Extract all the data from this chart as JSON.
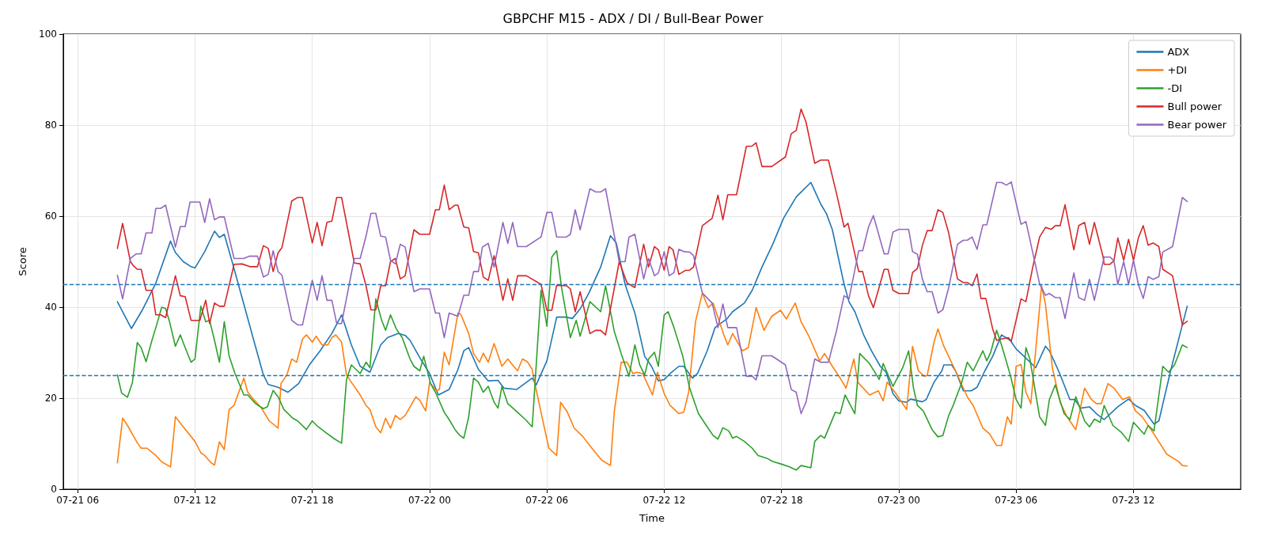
{
  "chart_data": {
    "type": "line",
    "title": "GBPCHF M15 - ADX / DI / Bull-Bear Power",
    "xlabel": "Time",
    "ylabel": "Score",
    "xlim": [
      "--07-21T05:16",
      "--07-23T17:29"
    ],
    "xticks": [
      {
        "value": "--07-21T06:00",
        "label": "07-21 06"
      },
      {
        "value": "--07-21T12:00",
        "label": "07-21 12"
      },
      {
        "value": "--07-21T18:00",
        "label": "07-21 18"
      },
      {
        "value": "--07-22T00:00",
        "label": "07-22 00"
      },
      {
        "value": "--07-22T06:00",
        "label": "07-22 06"
      },
      {
        "value": "--07-22T12:00",
        "label": "07-22 12"
      },
      {
        "value": "--07-22T18:00",
        "label": "07-22 18"
      },
      {
        "value": "--07-23T00:00",
        "label": "07-23 00"
      },
      {
        "value": "--07-23T06:00",
        "label": "07-23 06"
      },
      {
        "value": "--07-23T12:00",
        "label": "07-23 12"
      }
    ],
    "ylim": [
      0,
      100
    ],
    "yticks": [
      0,
      20,
      40,
      60,
      80,
      100
    ],
    "grid": true,
    "legend": "top right",
    "ref_lines": [
      {
        "axis": "y",
        "value": 45,
        "color": "#1f77b4",
        "line_style": "dashed"
      },
      {
        "axis": "y",
        "value": 25,
        "color": "#1f77b4",
        "line_style": "dashed"
      }
    ],
    "series": [
      {
        "name": "ADX",
        "color": "#1f77b4",
        "x": [
          "--07-21T08:02",
          "--07-21T08:45",
          "--07-21T09:18",
          "--07-21T10:00",
          "--07-21T10:45",
          "--07-21T11:00",
          "--07-21T11:24",
          "--07-21T11:48",
          "--07-21T12:00",
          "--07-21T12:30",
          "--07-21T13:00",
          "--07-21T13:15",
          "--07-21T13:30",
          "--07-21T13:54",
          "--07-21T14:21",
          "--07-21T14:57",
          "--07-21T15:30",
          "--07-21T15:45",
          "--07-21T16:15",
          "--07-21T16:45",
          "--07-21T17:18",
          "--07-21T17:51",
          "--07-21T18:24",
          "--07-21T19:00",
          "--07-21T19:30",
          "--07-21T20:00",
          "--07-21T20:27",
          "--07-21T20:57",
          "--07-21T21:30",
          "--07-21T21:51",
          "--07-21T22:24",
          "--07-21T22:45",
          "--07-21T23:00",
          "--07-21T23:30",
          "--07-22T00:00",
          "--07-22T00:27",
          "--07-22T01:00",
          "--07-22T01:27",
          "--07-22T01:45",
          "--07-22T02:00",
          "--07-22T02:30",
          "--07-22T03:00",
          "--07-22T03:30",
          "--07-22T03:48",
          "--07-22T04:27",
          "--07-22T05:15",
          "--07-22T05:27",
          "--07-22T06:00",
          "--07-22T06:30",
          "--07-22T07:00",
          "--07-22T07:18",
          "--07-22T07:42",
          "--07-22T08:09",
          "--07-22T08:45",
          "--07-22T09:15",
          "--07-22T09:33",
          "--07-22T10:00",
          "--07-22T10:30",
          "--07-22T11:00",
          "--07-22T11:21",
          "--07-22T11:42",
          "--07-22T12:00",
          "--07-22T12:18",
          "--07-22T12:45",
          "--07-22T13:00",
          "--07-22T13:27",
          "--07-22T13:42",
          "--07-22T14:12",
          "--07-22T14:36",
          "--07-22T15:12",
          "--07-22T15:30",
          "--07-22T16:06",
          "--07-22T16:30",
          "--07-22T17:00",
          "--07-22T17:33",
          "--07-22T18:06",
          "--07-22T18:45",
          "--07-22T19:30",
          "--07-22T20:00",
          "--07-22T20:18",
          "--07-22T20:36",
          "--07-22T21:12",
          "--07-22T21:27",
          "--07-22T21:45",
          "--07-22T22:12",
          "--07-22T22:36",
          "--07-22T23:03",
          "--07-22T23:21",
          "--07-22T23:42",
          "--07-23T00:00",
          "--07-23T00:24",
          "--07-23T00:36",
          "--07-23T01:12",
          "--07-23T01:24",
          "--07-23T01:48",
          "--07-23T02:12",
          "--07-23T02:18",
          "--07-23T02:42",
          "--07-23T02:54",
          "--07-23T03:18",
          "--07-23T03:42",
          "--07-23T04:00",
          "--07-23T04:24",
          "--07-23T04:48",
          "--07-23T05:15",
          "--07-23T05:42",
          "--07-23T06:00",
          "--07-23T06:24",
          "--07-23T07:00",
          "--07-23T07:30",
          "--07-23T07:42",
          "--07-23T08:12",
          "--07-23T08:45",
          "--07-23T09:00",
          "--07-23T09:18",
          "--07-23T09:45",
          "--07-23T10:06",
          "--07-23T10:30",
          "--07-23T11:12",
          "--07-23T11:45",
          "--07-23T12:06",
          "--07-23T12:33",
          "--07-23T13:03",
          "--07-23T13:18",
          "--07-23T13:54",
          "--07-23T14:30",
          "--07-23T14:45"
        ],
        "values": [
          41.2,
          35.3,
          39.3,
          45.3,
          54.5,
          52,
          50,
          48.9,
          48.6,
          52.2,
          56.7,
          55.3,
          56,
          50,
          43,
          33.6,
          25.1,
          23,
          22.4,
          21.3,
          23.2,
          27.3,
          30.4,
          34.2,
          38.3,
          31.7,
          27,
          25.7,
          31.7,
          33.3,
          34.2,
          33.8,
          32.7,
          28.9,
          25.4,
          20.7,
          21.9,
          26.3,
          30.4,
          31.1,
          26.3,
          23.8,
          23.9,
          22.2,
          21.9,
          24.4,
          22.9,
          28.2,
          37.8,
          37.8,
          37.5,
          39.6,
          43.1,
          48.8,
          55.7,
          54.1,
          45,
          38.7,
          29.2,
          27,
          23.8,
          24.1,
          25.4,
          27,
          27,
          24.4,
          25.4,
          30.4,
          35.5,
          37.4,
          39,
          40.9,
          43.7,
          48.8,
          53.8,
          59.5,
          64.2,
          67.4,
          62.7,
          60.5,
          57,
          45,
          41.2,
          39,
          33.9,
          30.4,
          27,
          25.7,
          21,
          19.4,
          19.1,
          19.8,
          19.2,
          19.7,
          23.5,
          26,
          27.3,
          27.3,
          26,
          21.6,
          21.6,
          22.4,
          26,
          29.2,
          33.9,
          32.7,
          30.8,
          29.2,
          26.7,
          31.4,
          30.4,
          25.7,
          19.7,
          19.7,
          17.8,
          18.1,
          16.6,
          15.3,
          18.1,
          19.8,
          18.4,
          17.3,
          14.3,
          15,
          26,
          36.1,
          40.2
        ]
      },
      {
        "name": "+DI",
        "color": "#ff7f0e",
        "x": [
          "--07-21T08:02",
          "--07-21T08:18",
          "--07-21T08:33",
          "--07-21T09:03",
          "--07-21T09:15",
          "--07-21T09:33",
          "--07-21T10:00",
          "--07-21T10:18",
          "--07-21T10:45",
          "--07-21T11:00",
          "--07-21T11:24",
          "--07-21T12:00",
          "--07-21T12:18",
          "--07-21T12:30",
          "--07-21T12:48",
          "--07-21T13:00",
          "--07-21T13:15",
          "--07-21T13:30",
          "--07-21T13:45",
          "--07-21T14:00",
          "--07-21T14:30",
          "--07-21T14:42",
          "--07-21T14:57",
          "--07-21T15:24",
          "--07-21T15:48",
          "--07-21T16:15",
          "--07-21T16:24",
          "--07-21T16:42",
          "--07-21T16:57",
          "--07-21T17:12",
          "--07-21T17:30",
          "--07-21T17:42",
          "--07-21T18:00",
          "--07-21T18:12",
          "--07-21T18:30",
          "--07-21T18:48",
          "--07-21T19:00",
          "--07-21T19:12",
          "--07-21T19:30",
          "--07-21T19:45",
          "--07-21T20:00",
          "--07-21T20:27",
          "--07-21T20:45",
          "--07-21T20:57",
          "--07-21T21:15",
          "--07-21T21:30",
          "--07-21T21:45",
          "--07-21T22:00",
          "--07-21T22:15",
          "--07-21T22:30",
          "--07-21T22:45",
          "--07-21T23:18",
          "--07-21T23:30",
          "--07-21T23:48",
          "--07-22T00:00",
          "--07-22T00:21",
          "--07-22T00:30",
          "--07-22T00:45",
          "--07-22T01:00",
          "--07-22T01:27",
          "--07-22T01:36",
          "--07-22T02:00",
          "--07-22T02:15",
          "--07-22T02:33",
          "--07-22T02:45",
          "--07-22T03:00",
          "--07-22T03:18",
          "--07-22T03:42",
          "--07-22T04:00",
          "--07-22T04:18",
          "--07-22T04:30",
          "--07-22T04:45",
          "--07-22T05:00",
          "--07-22T05:15",
          "--07-22T05:24",
          "--07-22T05:45",
          "--07-22T06:06",
          "--07-22T06:30",
          "--07-22T06:42",
          "--07-22T07:03",
          "--07-22T07:24",
          "--07-22T07:51",
          "--07-22T08:18",
          "--07-22T08:48",
          "--07-22T09:15",
          "--07-22T09:27",
          "--07-22T09:48",
          "--07-22T10:06",
          "--07-22T10:24",
          "--07-22T10:36",
          "--07-22T10:54",
          "--07-22T11:24",
          "--07-22T11:39",
          "--07-22T12:00",
          "--07-22T12:18",
          "--07-22T12:45",
          "--07-22T13:00",
          "--07-22T13:15",
          "--07-22T13:36",
          "--07-22T13:57",
          "--07-22T14:15",
          "--07-22T14:30",
          "--07-22T15:03",
          "--07-22T15:15",
          "--07-22T15:30",
          "--07-22T16:00",
          "--07-22T16:18",
          "--07-22T16:42",
          "--07-22T17:06",
          "--07-22T17:30",
          "--07-22T17:57",
          "--07-22T18:15",
          "--07-22T18:42",
          "--07-22T19:00",
          "--07-22T19:24",
          "--07-22T19:57",
          "--07-22T20:12",
          "--07-22T20:36",
          "--07-22T21:00",
          "--07-22T21:18",
          "--07-22T21:42",
          "--07-22T21:54",
          "--07-22T22:30",
          "--07-22T22:57",
          "--07-22T23:12",
          "--07-22T23:24",
          "--07-22T23:48",
          "--07-23T00:24",
          "--07-23T00:42",
          "--07-23T01:00",
          "--07-23T01:18",
          "--07-23T01:27",
          "--07-23T01:48",
          "--07-23T02:00",
          "--07-23T02:18",
          "--07-23T02:54",
          "--07-23T03:30",
          "--07-23T03:48",
          "--07-23T04:18",
          "--07-23T04:39",
          "--07-23T05:00",
          "--07-23T05:15",
          "--07-23T05:33",
          "--07-23T05:45",
          "--07-23T06:00",
          "--07-23T06:15",
          "--07-23T06:30",
          "--07-23T06:45",
          "--07-23T07:18",
          "--07-23T07:30",
          "--07-23T07:51",
          "--07-23T08:15",
          "--07-23T08:36",
          "--07-23T09:03",
          "--07-23T09:30",
          "--07-23T09:51",
          "--07-23T10:06",
          "--07-23T10:21",
          "--07-23T10:42",
          "--07-23T11:00",
          "--07-23T11:27",
          "--07-23T11:48",
          "--07-23T12:06",
          "--07-23T12:27",
          "--07-23T13:03",
          "--07-23T13:42",
          "--07-23T14:18",
          "--07-23T14:30",
          "--07-23T14:45"
        ],
        "values": [
          5.8,
          15.6,
          14,
          10.2,
          9,
          9,
          7.4,
          6,
          4.9,
          15.9,
          13.7,
          10.5,
          8,
          7.4,
          5.9,
          5.3,
          10.4,
          8.7,
          17.5,
          18.4,
          24.4,
          21.3,
          20,
          17.8,
          15,
          13.4,
          23.2,
          25.1,
          28.6,
          27.9,
          33,
          33.9,
          32.3,
          33.6,
          31.7,
          31.7,
          33.3,
          33.9,
          32.3,
          25.1,
          23.5,
          20.7,
          18.4,
          17.5,
          13.7,
          12.4,
          15.6,
          13.4,
          16.2,
          15.3,
          16.2,
          20.3,
          19.5,
          17.2,
          23.5,
          21.6,
          21.9,
          30.1,
          27.3,
          38.7,
          38.4,
          34.2,
          29.8,
          27.9,
          29.9,
          27.9,
          32,
          27,
          28.6,
          27,
          26,
          28.6,
          28,
          26.3,
          22.9,
          15.9,
          9,
          7.4,
          19.1,
          16.9,
          13.4,
          11.5,
          9,
          6.4,
          5.2,
          17.2,
          27.9,
          27.9,
          25.4,
          25.7,
          25.4,
          20.7,
          25.7,
          21,
          18.4,
          16.6,
          16.9,
          21.3,
          36.8,
          43.1,
          39.9,
          40.9,
          33.9,
          31.7,
          34.2,
          30.4,
          31.1,
          39.9,
          34.9,
          38,
          39.3,
          37.4,
          40.9,
          36.8,
          33.6,
          28.2,
          29.8,
          27,
          24.4,
          22.2,
          28.6,
          23.5,
          20.7,
          21.6,
          19.4,
          23.5,
          21.3,
          17.5,
          31.4,
          26,
          24.8,
          25,
          32.3,
          35.2,
          31.4,
          26,
          20.3,
          18.4,
          13.4,
          12.1,
          9.6,
          9.6,
          15.9,
          14.3,
          27,
          27.4,
          21.3,
          18.8,
          44.7,
          40.6,
          26.7,
          19.1,
          15.9,
          13.1,
          22.2,
          19.7,
          18.8,
          18.8,
          23.2,
          22.2,
          19.7,
          20.3,
          17.2,
          15.9,
          12.1,
          7.7,
          6.1,
          5.2,
          5.1
        ]
      },
      {
        "name": "-DI",
        "color": "#2ca02c",
        "x": [
          "--07-21T08:02",
          "--07-21T08:15",
          "--07-21T08:33",
          "--07-21T08:48",
          "--07-21T09:03",
          "--07-21T09:15",
          "--07-21T09:30",
          "--07-21T09:48",
          "--07-21T10:00",
          "--07-21T10:18",
          "--07-21T10:30",
          "--07-21T10:42",
          "--07-21T11:00",
          "--07-21T11:15",
          "--07-21T11:30",
          "--07-21T11:48",
          "--07-21T12:00",
          "--07-21T12:18",
          "--07-21T12:33",
          "--07-21T12:45",
          "--07-21T13:00",
          "--07-21T13:15",
          "--07-21T13:30",
          "--07-21T13:45",
          "--07-21T14:03",
          "--07-21T14:30",
          "--07-21T14:42",
          "--07-21T15:06",
          "--07-21T15:30",
          "--07-21T15:42",
          "--07-21T16:00",
          "--07-21T16:15",
          "--07-21T16:33",
          "--07-21T17:00",
          "--07-21T17:15",
          "--07-21T17:42",
          "--07-21T18:00",
          "--07-21T18:18",
          "--07-21T18:42",
          "--07-21T19:09",
          "--07-21T19:30",
          "--07-21T19:45",
          "--07-21T20:00",
          "--07-21T20:27",
          "--07-21T20:45",
          "--07-21T20:57",
          "--07-21T21:15",
          "--07-21T21:33",
          "--07-21T21:45",
          "--07-21T22:00",
          "--07-21T22:18",
          "--07-21T22:36",
          "--07-21T23:00",
          "--07-21T23:12",
          "--07-21T23:30",
          "--07-21T23:42",
          "--07-22T00:03",
          "--07-22T00:18",
          "--07-22T00:45",
          "--07-22T01:00",
          "--07-22T01:18",
          "--07-22T01:33",
          "--07-22T01:45",
          "--07-22T02:00",
          "--07-22T02:15",
          "--07-22T02:30",
          "--07-22T02:45",
          "--07-22T03:00",
          "--07-22T03:18",
          "--07-22T03:30",
          "--07-22T03:42",
          "--07-22T04:00",
          "--07-22T04:30",
          "--07-22T04:54",
          "--07-22T05:15",
          "--07-22T05:42",
          "--07-22T06:00",
          "--07-22T06:15",
          "--07-22T06:30",
          "--07-22T06:45",
          "--07-22T07:12",
          "--07-22T07:30",
          "--07-22T07:42",
          "--07-22T08:12",
          "--07-22T08:45",
          "--07-22T09:00",
          "--07-22T09:27",
          "--07-22T09:48",
          "--07-22T10:12",
          "--07-22T10:30",
          "--07-22T10:45",
          "--07-22T11:00",
          "--07-22T11:12",
          "--07-22T11:30",
          "--07-22T11:42",
          "--07-22T12:00",
          "--07-22T12:12",
          "--07-22T12:30",
          "--07-22T12:57",
          "--07-22T13:18",
          "--07-22T13:45",
          "--07-22T14:12",
          "--07-22T14:30",
          "--07-22T14:45",
          "--07-22T15:00",
          "--07-22T15:18",
          "--07-22T15:30",
          "--07-22T15:42",
          "--07-22T16:06",
          "--07-22T16:30",
          "--07-22T16:48",
          "--07-22T17:15",
          "--07-22T17:33",
          "--07-22T18:00",
          "--07-22T18:24",
          "--07-22T18:45",
          "--07-22T19:00",
          "--07-22T19:30",
          "--07-22T19:42",
          "--07-22T20:00",
          "--07-22T20:12",
          "--07-22T20:45",
          "--07-22T21:00",
          "--07-22T21:15",
          "--07-22T21:45",
          "--07-22T22:00",
          "--07-22T22:30",
          "--07-22T23:00",
          "--07-22T23:12",
          "--07-22T23:42",
          "--07-23T00:12",
          "--07-23T00:30",
          "--07-23T00:45",
          "--07-23T00:57",
          "--07-23T01:15",
          "--07-23T01:42",
          "--07-23T02:00",
          "--07-23T02:15",
          "--07-23T02:33",
          "--07-23T02:45",
          "--07-23T03:12",
          "--07-23T03:30",
          "--07-23T03:48",
          "--07-23T04:18",
          "--07-23T04:30",
          "--07-23T04:42",
          "--07-23T05:00",
          "--07-23T05:15",
          "--07-23T05:42",
          "--07-23T06:00",
          "--07-23T06:15",
          "--07-23T06:30",
          "--07-23T06:42",
          "--07-23T07:12",
          "--07-23T07:30",
          "--07-23T07:42",
          "--07-23T08:00",
          "--07-23T08:27",
          "--07-23T08:45",
          "--07-23T09:03",
          "--07-23T09:30",
          "--07-23T09:45",
          "--07-23T10:00",
          "--07-23T10:18",
          "--07-23T10:30",
          "--07-23T10:57",
          "--07-23T11:24",
          "--07-23T11:45",
          "--07-23T12:00",
          "--07-23T12:33",
          "--07-23T12:45",
          "--07-23T13:03",
          "--07-23T13:30",
          "--07-23T13:48",
          "--07-23T14:06",
          "--07-23T14:30",
          "--07-23T14:45"
        ],
        "values": [
          25.1,
          21.1,
          20.2,
          23.4,
          32.2,
          31.1,
          28,
          32.7,
          35.5,
          40,
          39.7,
          36.8,
          31.4,
          33.9,
          31.1,
          27.9,
          28.6,
          40.2,
          36.8,
          37.1,
          32.7,
          27.9,
          36.8,
          29.2,
          25.4,
          20.7,
          20.7,
          18.8,
          17.7,
          18.1,
          21.7,
          20.3,
          17.5,
          15.6,
          15,
          13.1,
          15,
          13.7,
          12.4,
          11,
          10.1,
          24.1,
          27.3,
          25.4,
          27.9,
          26.7,
          41.8,
          37.1,
          34.9,
          38.3,
          35.2,
          33.3,
          28.6,
          27,
          26,
          29.2,
          23.2,
          21.3,
          16.9,
          15.3,
          13.1,
          11.8,
          11.2,
          15.9,
          24.4,
          23.5,
          21.3,
          22.6,
          19.1,
          17.8,
          22.6,
          18.8,
          16.9,
          15.3,
          13.7,
          43.7,
          35.8,
          51,
          52.4,
          44.3,
          33.3,
          37.1,
          33.6,
          41.2,
          39,
          44.7,
          34.6,
          29.8,
          24.8,
          31.7,
          27.3,
          25.1,
          28.6,
          30.1,
          27,
          38.3,
          39,
          35.5,
          29.2,
          22.2,
          16.6,
          13.7,
          11.8,
          11,
          13.5,
          12.8,
          11.2,
          11.6,
          10.5,
          9,
          7.4,
          6.8,
          6.1,
          5.5,
          4.9,
          4.2,
          5.2,
          4.7,
          10.5,
          11.8,
          11.2,
          16.9,
          16.6,
          20.7,
          16.6,
          29.8,
          27.6,
          24.1,
          27.6,
          22.6,
          26.7,
          30.4,
          22.2,
          18.4,
          17.2,
          13.1,
          11.5,
          11.8,
          16.2,
          18.1,
          23.2,
          27.9,
          26,
          30.4,
          28.2,
          30.1,
          34.9,
          31.7,
          25.1,
          19.7,
          17.8,
          31.1,
          28.6,
          15.9,
          14,
          19.7,
          22.9,
          16.6,
          15.3,
          20.3,
          15,
          13.7,
          15.4,
          14.7,
          18.4,
          14,
          12.4,
          10.5,
          14.7,
          12.1,
          14,
          12.8,
          27,
          25.7,
          27.3,
          31.7,
          31.1
        ]
      },
      {
        "name": "Bull power",
        "color": "#d62728",
        "x": [
          "--07-21T08:02",
          "--07-21T08:18",
          "--07-21T08:42",
          "--07-21T08:51",
          "--07-21T09:03",
          "--07-21T09:15",
          "--07-21T09:30",
          "--07-21T09:48",
          "--07-21T10:00",
          "--07-21T10:15",
          "--07-21T10:30",
          "--07-21T11:00",
          "--07-21T11:15",
          "--07-21T11:30",
          "--07-21T11:48",
          "--07-21T12:15",
          "--07-21T12:33",
          "--07-21T12:45",
          "--07-21T13:00",
          "--07-21T13:15",
          "--07-21T13:30",
          "--07-21T14:00",
          "--07-21T14:24",
          "--07-21T14:48",
          "--07-21T15:12",
          "--07-21T15:30",
          "--07-21T15:45",
          "--07-21T16:00",
          "--07-21T16:15",
          "--07-21T16:27",
          "--07-21T16:57",
          "--07-21T17:15",
          "--07-21T17:30",
          "--07-21T18:00",
          "--07-21T18:15",
          "--07-21T18:30",
          "--07-21T18:45",
          "--07-21T19:00",
          "--07-21T19:15",
          "--07-21T19:30",
          "--07-21T20:09",
          "--07-21T20:27",
          "--07-21T20:45",
          "--07-21T21:00",
          "--07-21T21:15",
          "--07-21T21:30",
          "--07-21T21:45",
          "--07-21T22:00",
          "--07-21T22:15",
          "--07-21T22:30",
          "--07-21T22:45",
          "--07-21T23:12",
          "--07-21T23:30",
          "--07-22T00:00",
          "--07-22T00:18",
          "--07-22T00:30",
          "--07-22T00:45",
          "--07-22T01:00",
          "--07-22T01:18",
          "--07-22T01:27",
          "--07-22T01:45",
          "--07-22T02:00",
          "--07-22T02:15",
          "--07-22T02:30",
          "--07-22T02:45",
          "--07-22T03:00",
          "--07-22T03:18",
          "--07-22T03:45",
          "--07-22T04:00",
          "--07-22T04:15",
          "--07-22T04:30",
          "--07-22T04:57",
          "--07-22T05:42",
          "--07-22T06:00",
          "--07-22T06:15",
          "--07-22T06:30",
          "--07-22T07:00",
          "--07-22T07:12",
          "--07-22T07:27",
          "--07-22T07:42",
          "--07-22T08:12",
          "--07-22T08:30",
          "--07-22T08:45",
          "--07-22T09:00",
          "--07-22T09:42",
          "--07-22T10:06",
          "--07-22T10:30",
          "--07-22T10:57",
          "--07-22T11:12",
          "--07-22T11:30",
          "--07-22T11:42",
          "--07-22T12:00",
          "--07-22T12:15",
          "--07-22T12:27",
          "--07-22T12:45",
          "--07-22T13:06",
          "--07-22T13:18",
          "--07-22T13:30",
          "--07-22T13:57",
          "--07-22T14:27",
          "--07-22T14:45",
          "--07-22T15:00",
          "--07-22T15:15",
          "--07-22T15:42",
          "--07-22T16:12",
          "--07-22T16:30",
          "--07-22T16:42",
          "--07-22T17:00",
          "--07-22T17:30",
          "--07-22T18:12",
          "--07-22T18:30",
          "--07-22T18:45",
          "--07-22T19:00",
          "--07-22T19:15",
          "--07-22T19:42",
          "--07-22T20:00",
          "--07-22T20:24",
          "--07-22T20:48",
          "--07-22T21:12",
          "--07-22T21:24",
          "--07-22T21:57",
          "--07-22T22:09",
          "--07-22T22:27",
          "--07-22T22:42",
          "--07-22T23:15",
          "--07-22T23:27",
          "--07-22T23:42",
          "--07-23T00:00",
          "--07-23T00:30",
          "--07-23T00:42",
          "--07-23T00:57",
          "--07-23T01:12",
          "--07-23T01:27",
          "--07-23T01:42",
          "--07-23T02:00",
          "--07-23T02:15",
          "--07-23T02:33",
          "--07-23T03:00",
          "--07-23T03:18",
          "--07-23T03:30",
          "--07-23T03:45",
          "--07-23T04:00",
          "--07-23T04:12",
          "--07-23T04:27",
          "--07-23T04:48",
          "--07-23T05:00",
          "--07-23T05:15",
          "--07-23T05:36",
          "--07-23T05:45",
          "--07-23T06:15",
          "--07-23T06:30",
          "--07-23T06:51",
          "--07-23T07:12",
          "--07-23T07:30",
          "--07-23T07:48",
          "--07-23T08:00",
          "--07-23T08:15",
          "--07-23T08:30",
          "--07-23T08:57",
          "--07-23T09:12",
          "--07-23T09:30",
          "--07-23T09:45",
          "--07-23T10:00",
          "--07-23T10:27",
          "--07-23T10:30",
          "--07-23T10:48",
          "--07-23T11:00",
          "--07-23T11:12",
          "--07-23T11:30",
          "--07-23T11:45",
          "--07-23T12:00",
          "--07-23T12:15",
          "--07-23T12:30",
          "--07-23T12:45",
          "--07-23T13:00",
          "--07-23T13:18",
          "--07-23T13:30",
          "--07-23T14:00",
          "--07-23T14:30",
          "--07-23T14:45"
        ],
        "values": [
          52.9,
          58.4,
          50,
          49.1,
          48.3,
          48.3,
          43.7,
          43.7,
          38.3,
          38.3,
          37.7,
          46.9,
          42.5,
          42.3,
          37.1,
          37.1,
          41.5,
          36.4,
          40.9,
          40.2,
          40.2,
          49.4,
          49.5,
          48.9,
          48.9,
          53.5,
          52.9,
          47.8,
          51.9,
          53.1,
          63.3,
          64.1,
          64.1,
          54.1,
          58.6,
          53.5,
          58.6,
          58.9,
          64.1,
          64.1,
          49.7,
          49.5,
          44.7,
          39.4,
          39.4,
          44.7,
          44.7,
          50,
          50.7,
          46.2,
          46.9,
          57,
          56,
          56,
          61.4,
          61.4,
          66.8,
          61.4,
          62.4,
          62.4,
          57.6,
          57.4,
          52.2,
          51.9,
          46.6,
          45.9,
          51.3,
          41.5,
          46.2,
          41.5,
          46.9,
          46.9,
          45,
          39.3,
          39.3,
          44.8,
          44.7,
          44,
          39,
          43.4,
          34.2,
          34.9,
          34.9,
          33.9,
          50,
          45.3,
          44.3,
          53.8,
          48.8,
          53.3,
          52.6,
          48.1,
          53.3,
          52.6,
          47.2,
          48.1,
          48.1,
          48.8,
          57.9,
          59.5,
          64.6,
          59.2,
          64.7,
          64.7,
          75.3,
          75.4,
          76.1,
          70.9,
          70.9,
          73,
          78.1,
          78.8,
          83.5,
          80.7,
          71.6,
          72.3,
          72.3,
          65.2,
          57.6,
          58.4,
          47.8,
          47.8,
          42.5,
          39.9,
          48.3,
          48.3,
          43.7,
          43,
          43,
          47.6,
          48.5,
          53.5,
          56.8,
          56.8,
          61.4,
          60.8,
          56.3,
          46.2,
          45.4,
          45.4,
          44.7,
          47.3,
          41.9,
          41.9,
          35.2,
          32.7,
          33,
          33.3,
          32.5,
          41.8,
          41.2,
          48.8,
          55.4,
          57.5,
          57.1,
          57.9,
          57.9,
          62.5,
          52.6,
          57.9,
          58.6,
          53.8,
          58.6,
          51,
          49.4,
          49.4,
          50.2,
          55.2,
          50.3,
          54.9,
          50.3,
          55.2,
          57.9,
          53.6,
          54.1,
          53.3,
          48.3,
          46.9,
          36.1,
          36.9
        ]
      },
      {
        "name": "Bear power",
        "color": "#9467bd",
        "x": [
          "--07-21T08:02",
          "--07-21T08:18",
          "--07-21T08:42",
          "--07-21T09:00",
          "--07-21T09:15",
          "--07-21T09:30",
          "--07-21T09:48",
          "--07-21T10:00",
          "--07-21T10:15",
          "--07-21T10:30",
          "--07-21T11:00",
          "--07-21T11:15",
          "--07-21T11:30",
          "--07-21T11:45",
          "--07-21T12:15",
          "--07-21T12:30",
          "--07-21T12:45",
          "--07-21T13:00",
          "--07-21T13:15",
          "--07-21T13:30",
          "--07-21T14:00",
          "--07-21T14:30",
          "--07-21T14:48",
          "--07-21T15:12",
          "--07-21T15:30",
          "--07-21T15:45",
          "--07-21T16:00",
          "--07-21T16:15",
          "--07-21T16:27",
          "--07-21T16:57",
          "--07-21T17:15",
          "--07-21T17:30",
          "--07-21T18:00",
          "--07-21T18:15",
          "--07-21T18:30",
          "--07-21T18:45",
          "--07-21T19:00",
          "--07-21T19:15",
          "--07-21T19:30",
          "--07-21T20:09",
          "--07-21T20:27",
          "--07-21T20:45",
          "--07-21T21:00",
          "--07-21T21:15",
          "--07-21T21:30",
          "--07-21T21:45",
          "--07-21T22:00",
          "--07-21T22:15",
          "--07-21T22:30",
          "--07-21T22:45",
          "--07-21T23:12",
          "--07-21T23:30",
          "--07-22T00:00",
          "--07-22T00:18",
          "--07-22T00:30",
          "--07-22T00:45",
          "--07-22T01:00",
          "--07-22T01:27",
          "--07-22T01:45",
          "--07-22T02:00",
          "--07-22T02:15",
          "--07-22T02:30",
          "--07-22T02:42",
          "--07-22T03:00",
          "--07-22T03:18",
          "--07-22T03:45",
          "--07-22T04:00",
          "--07-22T04:15",
          "--07-22T04:30",
          "--07-22T04:57",
          "--07-22T05:42",
          "--07-22T06:00",
          "--07-22T06:15",
          "--07-22T06:30",
          "--07-22T07:00",
          "--07-22T07:12",
          "--07-22T07:27",
          "--07-22T07:42",
          "--07-22T08:12",
          "--07-22T08:30",
          "--07-22T08:45",
          "--07-22T09:00",
          "--07-22T09:42",
          "--07-22T10:00",
          "--07-22T10:12",
          "--07-22T10:30",
          "--07-22T10:57",
          "--07-22T11:12",
          "--07-22T11:30",
          "--07-22T11:42",
          "--07-22T12:00",
          "--07-22T12:15",
          "--07-22T12:30",
          "--07-22T12:45",
          "--07-22T13:00",
          "--07-22T13:18",
          "--07-22T13:30",
          "--07-22T13:57",
          "--07-22T14:27",
          "--07-22T14:45",
          "--07-22T15:00",
          "--07-22T15:15",
          "--07-22T15:42",
          "--07-22T16:12",
          "--07-22T16:30",
          "--07-22T16:42",
          "--07-22T17:00",
          "--07-22T17:30",
          "--07-22T18:12",
          "--07-22T18:30",
          "--07-22T18:45",
          "--07-22T19:00",
          "--07-22T19:15",
          "--07-22T19:42",
          "--07-22T20:00",
          "--07-22T20:24",
          "--07-22T20:48",
          "--07-22T21:12",
          "--07-22T21:27",
          "--07-22T21:57",
          "--07-22T22:09",
          "--07-22T22:27",
          "--07-22T22:42",
          "--07-22T23:15",
          "--07-22T23:27",
          "--07-22T23:42",
          "--07-23T00:00",
          "--07-23T00:30",
          "--07-23T00:42",
          "--07-23T00:57",
          "--07-23T01:12",
          "--07-23T01:27",
          "--07-23T01:42",
          "--07-23T02:00",
          "--07-23T02:15",
          "--07-23T02:33",
          "--07-23T03:00",
          "--07-23T03:18",
          "--07-23T03:30",
          "--07-23T03:45",
          "--07-23T04:00",
          "--07-23T04:18",
          "--07-23T04:30",
          "--07-23T05:00",
          "--07-23T05:15",
          "--07-23T05:30",
          "--07-23T05:45",
          "--07-23T06:15",
          "--07-23T06:30",
          "--07-23T07:12",
          "--07-23T07:30",
          "--07-23T07:42",
          "--07-23T08:00",
          "--07-23T08:15",
          "--07-23T08:30",
          "--07-23T08:57",
          "--07-23T09:12",
          "--07-23T09:30",
          "--07-23T09:45",
          "--07-23T10:00",
          "--07-23T10:30",
          "--07-23T10:48",
          "--07-23T11:00",
          "--07-23T11:12",
          "--07-23T11:30",
          "--07-23T11:45",
          "--07-23T12:00",
          "--07-23T12:15",
          "--07-23T12:30",
          "--07-23T12:45",
          "--07-23T13:00",
          "--07-23T13:18",
          "--07-23T13:30",
          "--07-23T14:00",
          "--07-23T14:30",
          "--07-23T14:45"
        ],
        "values": [
          47,
          41.8,
          50.7,
          51.7,
          51.7,
          56.3,
          56.3,
          61.7,
          61.7,
          62.4,
          53.2,
          57.7,
          57.7,
          63.1,
          63.1,
          58.6,
          63.8,
          59.2,
          59.8,
          59.8,
          50.7,
          50.7,
          51.2,
          51.2,
          46.6,
          47.2,
          52.4,
          47.8,
          47,
          37.1,
          36.1,
          36.1,
          45.9,
          41.5,
          46.9,
          41.5,
          41.5,
          36.4,
          36.4,
          50.7,
          50.7,
          55.6,
          60.6,
          60.6,
          55.6,
          55.4,
          50.3,
          49.5,
          53.8,
          53.2,
          43.4,
          44,
          44,
          38.7,
          38.7,
          33.3,
          38.7,
          38,
          42.6,
          42.6,
          47.8,
          47.8,
          53.2,
          54,
          48.8,
          58.6,
          54,
          58.6,
          53.3,
          53.3,
          55.4,
          60.8,
          60.8,
          55.4,
          55.4,
          56,
          61.4,
          57,
          66,
          65.3,
          65.3,
          66,
          50,
          50,
          55.4,
          56,
          46.2,
          50.7,
          46.9,
          47.5,
          52.2,
          46.9,
          47.6,
          52.7,
          52.2,
          52.1,
          51.3,
          43.1,
          40.9,
          35.5,
          40.7,
          35.5,
          35.5,
          24.8,
          24.8,
          24,
          29.3,
          29.3,
          27.3,
          21.9,
          21.3,
          16.6,
          19.1,
          28.6,
          27.9,
          27.9,
          34.6,
          42.5,
          41.8,
          52.4,
          52.4,
          57.6,
          60.1,
          51.7,
          51.7,
          56.5,
          57.1,
          57.1,
          52.2,
          51.6,
          46.2,
          43.4,
          43.4,
          38.7,
          39.4,
          44.3,
          53.8,
          54.7,
          54.7,
          55.4,
          52.7,
          58.1,
          58.1,
          67.4,
          67.4,
          66.8,
          67.5,
          58.2,
          58.8,
          45.1,
          42.6,
          43,
          42.1,
          42.1,
          37.5,
          47.5,
          42.1,
          41.5,
          46.1,
          41.5,
          51,
          51,
          50.2,
          45,
          50,
          45,
          50.3,
          45,
          41.9,
          46.7,
          46.1,
          46.7,
          52.1,
          53.3,
          64.1,
          63.2
        ]
      }
    ]
  }
}
